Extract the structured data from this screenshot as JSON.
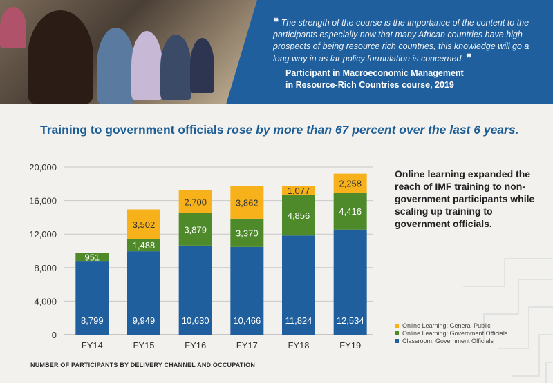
{
  "banner": {
    "quote_open": "❝",
    "quote_text": "The strength of the course is the importance of the content to the participants especially now that many African countries have high prospects of being resource rich countries, this knowledge will go a long way in as far policy formulation is concerned.",
    "quote_close": "❞",
    "attribution_line1": "Participant in Macroeconomic Management",
    "attribution_line2": "in Resource-Rich Countries course, 2019"
  },
  "headline": {
    "part1": "Training to government officials ",
    "part2": "rose by more than 67 percent over the last 6 years."
  },
  "sidenote": "Online learning expanded the reach of IMF training to non-government participants while scaling up training to government officials.",
  "footer": "NUMBER OF PARTICIPANTS BY DELIVERY CHANNEL AND OCCUPATION",
  "colors": {
    "classroom": "#1f5f9e",
    "online_gov": "#4e8a2a",
    "online_public": "#f7b21b",
    "headline": "#1b5d96"
  },
  "chart_data": {
    "type": "bar",
    "stacked": true,
    "categories": [
      "FY14",
      "FY15",
      "FY16",
      "FY17",
      "FY18",
      "FY19"
    ],
    "series": [
      {
        "name": "Classroom: Government Officials",
        "values": [
          8799,
          9949,
          10630,
          10466,
          11824,
          12534
        ]
      },
      {
        "name": "Online Learning: Government Officials",
        "values": [
          951,
          1488,
          3879,
          3370,
          4856,
          4416
        ]
      },
      {
        "name": "Online Learning: General Public",
        "values": [
          0,
          3502,
          2700,
          3862,
          1077,
          2258
        ]
      }
    ],
    "value_labels": [
      [
        "8,799",
        "9,949",
        "10,630",
        "10,466",
        "11,824",
        "12,534"
      ],
      [
        "951",
        "1,488",
        "3,879",
        "3,370",
        "4,856",
        "4,416"
      ],
      [
        "",
        "3,502",
        "2,700",
        "3,862",
        "1,077",
        "2,258"
      ]
    ],
    "ylim": [
      0,
      20000
    ],
    "yticks": [
      0,
      4000,
      8000,
      12000,
      16000,
      20000
    ],
    "ytick_labels": [
      "0",
      "4,000",
      "8,000",
      "12,000",
      "16,000",
      "20,000"
    ],
    "grid": true,
    "legend_position": "bottom-right"
  }
}
